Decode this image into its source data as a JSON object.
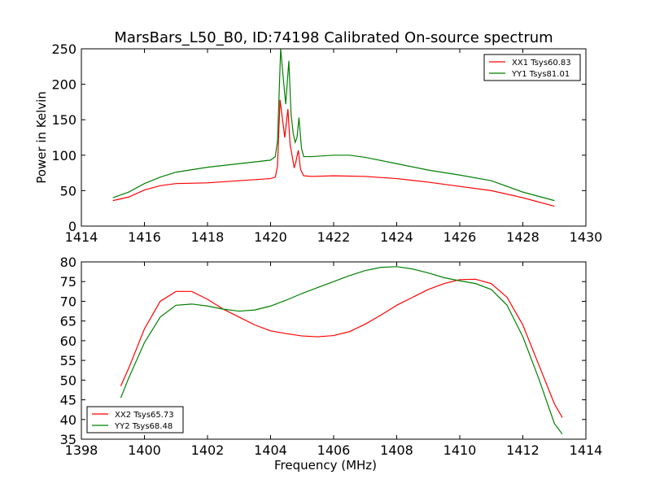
{
  "title": "MarsBars_L50_B0, ID:74198 Calibrated On-source spectrum",
  "chart_data": [
    {
      "type": "line",
      "ylabel": "Power in Kelvin",
      "xlabel": "",
      "xlim": [
        1414,
        1430
      ],
      "ylim": [
        0,
        250
      ],
      "xticks": [
        1414,
        1416,
        1418,
        1420,
        1422,
        1424,
        1426,
        1428,
        1430
      ],
      "yticks": [
        0,
        50,
        100,
        150,
        200,
        250
      ],
      "legend_position": "top-right",
      "grid": false,
      "series": [
        {
          "name": "XX1 Tsys60.83",
          "color": "#ff0000",
          "points": [
            [
              1415,
              36
            ],
            [
              1415.5,
              41
            ],
            [
              1416,
              51
            ],
            [
              1416.5,
              57
            ],
            [
              1417,
              60
            ],
            [
              1418,
              61
            ],
            [
              1419,
              64
            ],
            [
              1420,
              67
            ],
            [
              1420.15,
              69
            ],
            [
              1420.22,
              85
            ],
            [
              1420.3,
              178
            ],
            [
              1420.38,
              150
            ],
            [
              1420.45,
              125
            ],
            [
              1420.55,
              165
            ],
            [
              1420.62,
              115
            ],
            [
              1420.7,
              95
            ],
            [
              1420.75,
              82
            ],
            [
              1420.8,
              90
            ],
            [
              1420.88,
              107
            ],
            [
              1420.95,
              80
            ],
            [
              1421.05,
              71
            ],
            [
              1421.3,
              70
            ],
            [
              1422,
              71
            ],
            [
              1423,
              70
            ],
            [
              1424,
              67
            ],
            [
              1425,
              62
            ],
            [
              1426,
              56
            ],
            [
              1427,
              50
            ],
            [
              1428,
              40
            ],
            [
              1429,
              28
            ]
          ]
        },
        {
          "name": "YY1 Tsys81.01",
          "color": "#008000",
          "points": [
            [
              1415,
              40
            ],
            [
              1415.5,
              48
            ],
            [
              1416,
              60
            ],
            [
              1416.5,
              69
            ],
            [
              1417,
              76
            ],
            [
              1418,
              83
            ],
            [
              1419,
              88
            ],
            [
              1420,
              93
            ],
            [
              1420.15,
              98
            ],
            [
              1420.22,
              120
            ],
            [
              1420.32,
              250
            ],
            [
              1420.42,
              200
            ],
            [
              1420.48,
              172
            ],
            [
              1420.58,
              233
            ],
            [
              1420.65,
              158
            ],
            [
              1420.72,
              130
            ],
            [
              1420.78,
              118
            ],
            [
              1420.84,
              125
            ],
            [
              1420.9,
              153
            ],
            [
              1420.98,
              110
            ],
            [
              1421.05,
              98
            ],
            [
              1421.3,
              98
            ],
            [
              1422,
              100
            ],
            [
              1422.5,
              100
            ],
            [
              1423,
              97
            ],
            [
              1424,
              88
            ],
            [
              1425,
              79
            ],
            [
              1426,
              72
            ],
            [
              1427,
              64
            ],
            [
              1428,
              48
            ],
            [
              1429,
              36
            ]
          ]
        }
      ]
    },
    {
      "type": "line",
      "ylabel": "",
      "xlabel": "Frequency (MHz)",
      "xlim": [
        1398,
        1414
      ],
      "ylim": [
        35,
        80
      ],
      "xticks": [
        1398,
        1400,
        1402,
        1404,
        1406,
        1408,
        1410,
        1412,
        1414
      ],
      "yticks": [
        35,
        40,
        45,
        50,
        55,
        60,
        65,
        70,
        75,
        80
      ],
      "legend_position": "bottom-left",
      "grid": false,
      "series": [
        {
          "name": "XX2 Tsys65.73",
          "color": "#ff0000",
          "points": [
            [
              1399.25,
              48.5
            ],
            [
              1399.5,
              53
            ],
            [
              1400,
              63
            ],
            [
              1400.5,
              70
            ],
            [
              1401,
              72.5
            ],
            [
              1401.5,
              72.5
            ],
            [
              1402,
              70.5
            ],
            [
              1402.5,
              68
            ],
            [
              1403,
              66
            ],
            [
              1403.5,
              64
            ],
            [
              1404,
              62.5
            ],
            [
              1404.5,
              61.8
            ],
            [
              1405,
              61.2
            ],
            [
              1405.5,
              61
            ],
            [
              1406,
              61.3
            ],
            [
              1406.5,
              62.3
            ],
            [
              1407,
              64.2
            ],
            [
              1407.5,
              66.5
            ],
            [
              1408,
              69
            ],
            [
              1408.5,
              71
            ],
            [
              1409,
              73
            ],
            [
              1409.5,
              74.5
            ],
            [
              1410,
              75.5
            ],
            [
              1410.5,
              75.6
            ],
            [
              1411,
              74.5
            ],
            [
              1411.5,
              71
            ],
            [
              1412,
              64
            ],
            [
              1412.5,
              54
            ],
            [
              1413,
              44
            ],
            [
              1413.25,
              40.5
            ]
          ]
        },
        {
          "name": "YY2 Tsys68.48",
          "color": "#008000",
          "points": [
            [
              1399.25,
              45.5
            ],
            [
              1399.5,
              50.5
            ],
            [
              1400,
              59.5
            ],
            [
              1400.5,
              66
            ],
            [
              1401,
              69
            ],
            [
              1401.5,
              69.3
            ],
            [
              1402,
              68.8
            ],
            [
              1402.5,
              68
            ],
            [
              1403,
              67.5
            ],
            [
              1403.5,
              67.8
            ],
            [
              1404,
              68.8
            ],
            [
              1404.5,
              70.3
            ],
            [
              1405,
              72
            ],
            [
              1405.5,
              73.5
            ],
            [
              1406,
              75
            ],
            [
              1406.5,
              76.5
            ],
            [
              1407,
              77.8
            ],
            [
              1407.5,
              78.6
            ],
            [
              1408,
              78.8
            ],
            [
              1408.5,
              78.2
            ],
            [
              1409,
              77.2
            ],
            [
              1409.5,
              76
            ],
            [
              1410,
              75.2
            ],
            [
              1410.5,
              74.5
            ],
            [
              1411,
              73
            ],
            [
              1411.5,
              69
            ],
            [
              1412,
              61
            ],
            [
              1412.5,
              50.5
            ],
            [
              1413,
              39
            ],
            [
              1413.25,
              36.3
            ]
          ]
        }
      ]
    }
  ]
}
